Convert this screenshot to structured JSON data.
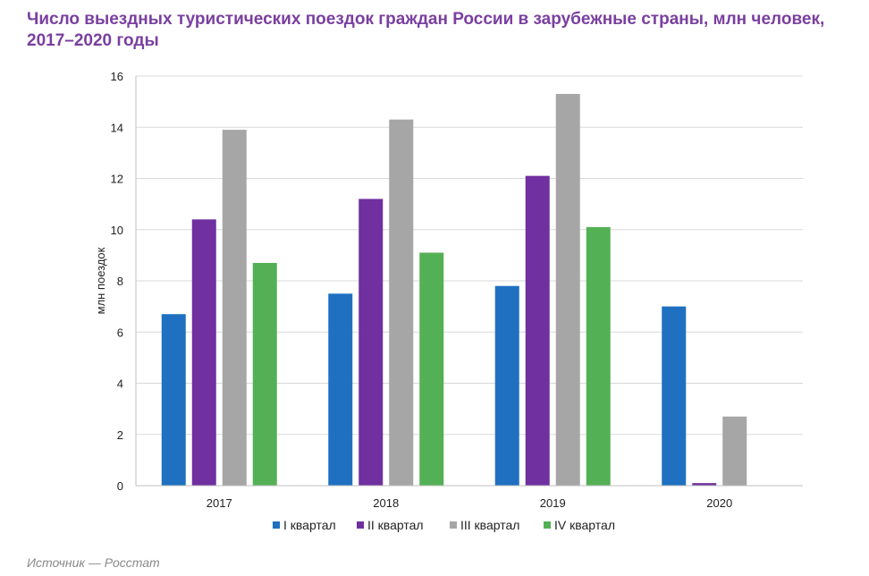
{
  "title": "Число выездных туристических поездок граждан России в зарубежные страны, млн человек, 2017–2020 годы",
  "source": "Источник — Росстат",
  "chart_data": {
    "type": "bar",
    "categories": [
      "2017",
      "2018",
      "2019",
      "2020"
    ],
    "ylabel": "млн поездок",
    "ylim": [
      0,
      16
    ],
    "yticks": [
      0,
      2,
      4,
      6,
      8,
      10,
      12,
      14,
      16
    ],
    "grid": true,
    "legend_position": "bottom",
    "series": [
      {
        "name": "I квартал",
        "color": "#1f70c1",
        "values": [
          6.7,
          7.5,
          7.8,
          7.0
        ]
      },
      {
        "name": "II квартал",
        "color": "#7030a0",
        "values": [
          10.4,
          11.2,
          12.1,
          0.1
        ]
      },
      {
        "name": "III квартал",
        "color": "#a6a6a6",
        "values": [
          13.9,
          14.3,
          15.3,
          2.7
        ]
      },
      {
        "name": "IV квартал",
        "color": "#54b055",
        "values": [
          8.7,
          9.1,
          10.1,
          null
        ]
      }
    ]
  }
}
